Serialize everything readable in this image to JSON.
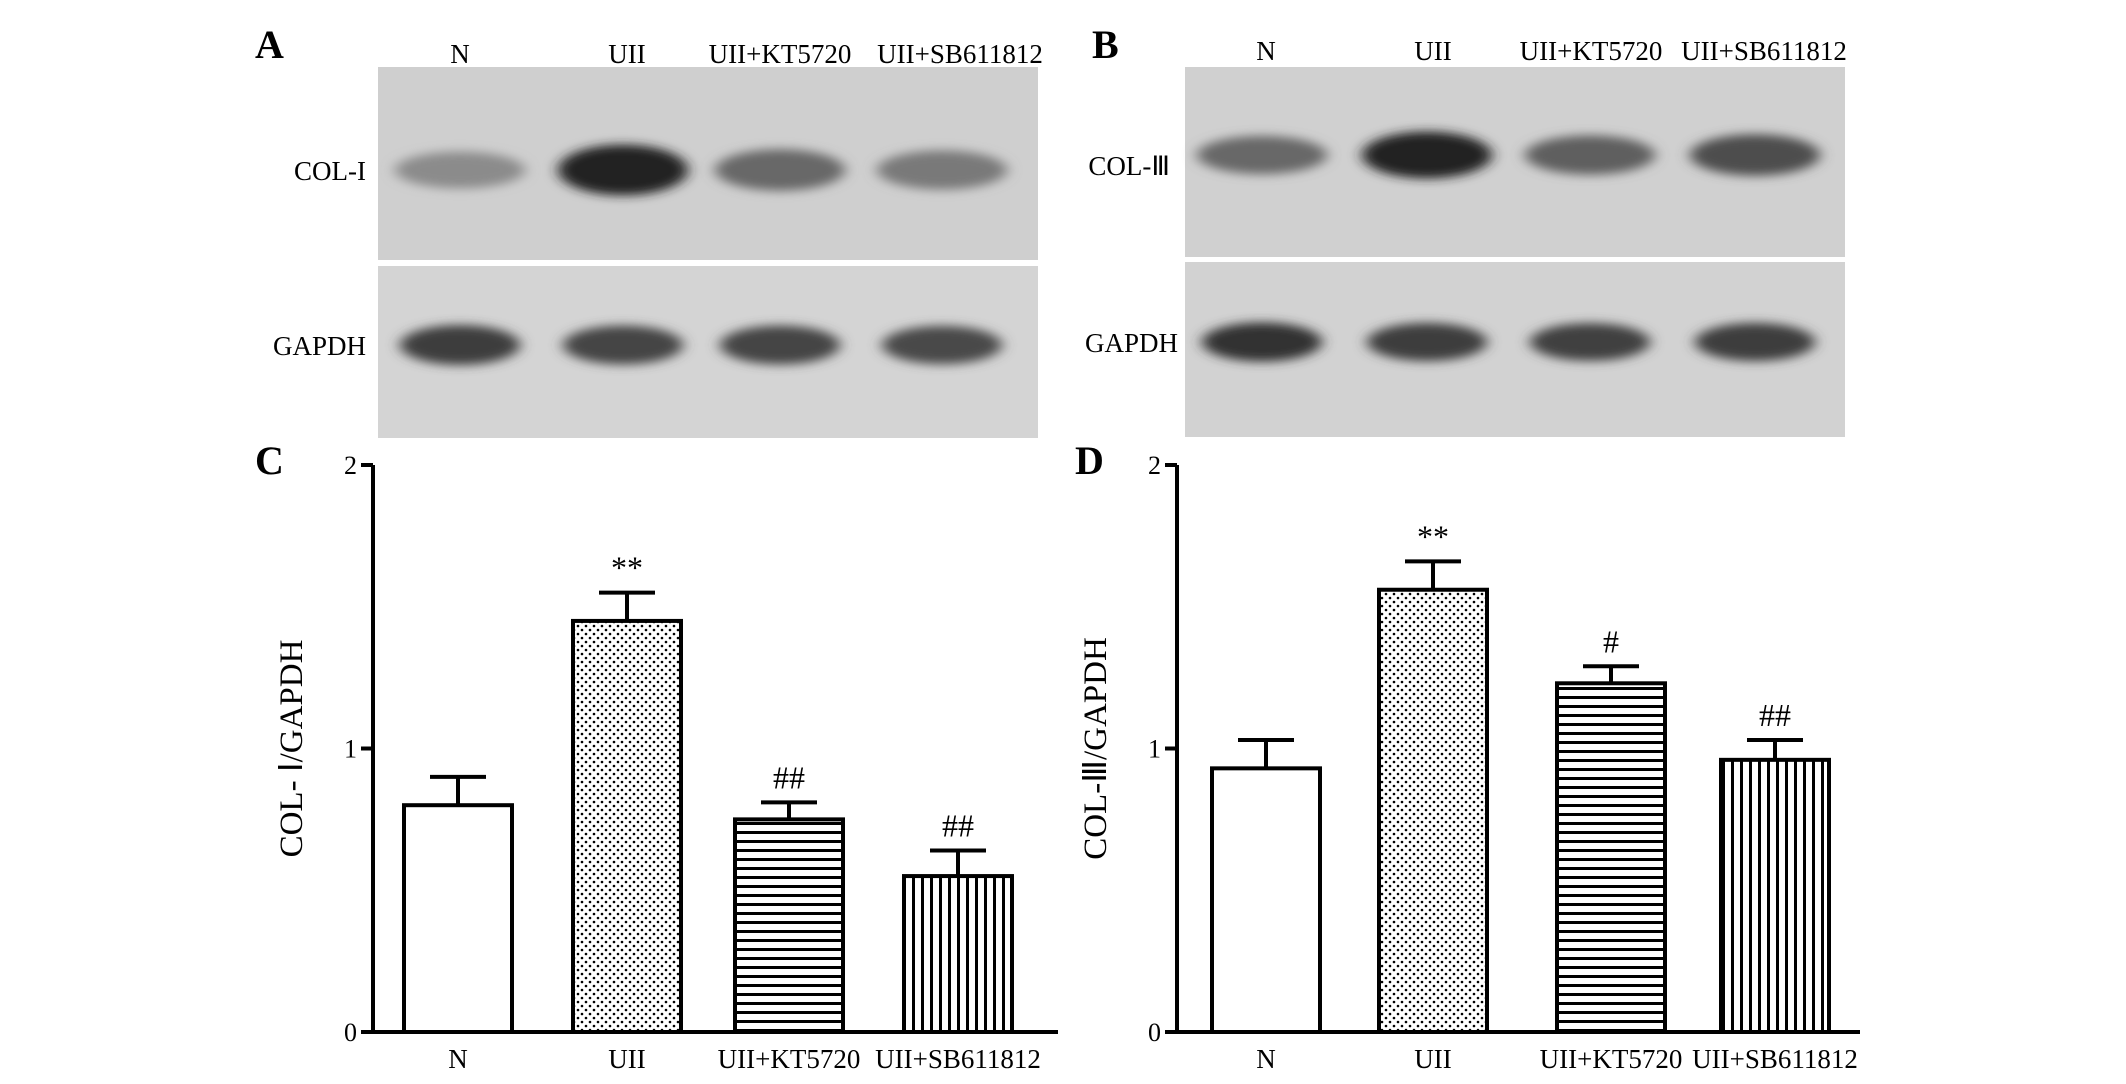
{
  "panels": {
    "A": {
      "letter": "A",
      "lanes": [
        "N",
        "UII",
        "UII+KT5720",
        "UII+SB611812"
      ],
      "bands": [
        "COL-I",
        "GAPDH"
      ],
      "intensities": {
        "COL-I": [
          0.35,
          0.95,
          0.55,
          0.45
        ],
        "GAPDH": [
          0.8,
          0.75,
          0.75,
          0.72
        ]
      }
    },
    "B": {
      "letter": "B",
      "lanes": [
        "N",
        "UII",
        "UII+KT5720",
        "UII+SB611812"
      ],
      "bands": [
        "COL-Ⅲ",
        "GAPDH"
      ],
      "intensities": {
        "COL-Ⅲ": [
          0.55,
          0.95,
          0.6,
          0.7
        ],
        "GAPDH": [
          0.85,
          0.8,
          0.78,
          0.8
        ]
      }
    }
  },
  "chart_data": [
    {
      "panel": "C",
      "type": "bar",
      "categories": [
        "N",
        "UII",
        "UII+KT5720",
        "UII+SB611812"
      ],
      "values": [
        0.8,
        1.45,
        0.75,
        0.55
      ],
      "errors": [
        0.1,
        0.1,
        0.06,
        0.09
      ],
      "significance": [
        "",
        "**",
        "##",
        "##"
      ],
      "patterns": [
        "none",
        "dots",
        "hlines",
        "vlines"
      ],
      "ylabel": "COL- Ⅰ/GAPDH",
      "xlabel": "",
      "ylim": [
        0,
        2
      ],
      "yticks": [
        0,
        1,
        2
      ]
    },
    {
      "panel": "D",
      "type": "bar",
      "categories": [
        "N",
        "UII",
        "UII+KT5720",
        "UII+SB611812"
      ],
      "values": [
        0.93,
        1.56,
        1.23,
        0.96
      ],
      "errors": [
        0.1,
        0.1,
        0.06,
        0.07
      ],
      "significance": [
        "",
        "**",
        "#",
        "##"
      ],
      "patterns": [
        "none",
        "dots",
        "hlines",
        "vlines"
      ],
      "ylabel": "COL-Ⅲ/GAPDH",
      "xlabel": "",
      "ylim": [
        0,
        2
      ],
      "yticks": [
        0,
        1,
        2
      ]
    }
  ],
  "colors": {
    "blot_background": "#d2d2d2",
    "band": "#202020",
    "bar_fill": "#ffffff",
    "axis": "#000000"
  }
}
